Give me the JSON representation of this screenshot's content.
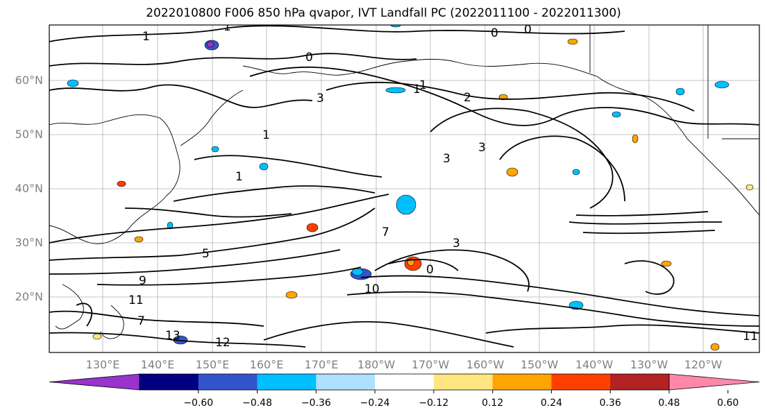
{
  "title": "2022010800 F006 850 hPa qvapor, IVT Landfall PC (2022011100 - 2022011300)",
  "lat_labels": [
    "60°N",
    "50°N",
    "40°N",
    "30°N",
    "20°N"
  ],
  "lon_labels": [
    "130°E",
    "140°E",
    "150°E",
    "160°E",
    "170°E",
    "180°W",
    "170°W",
    "160°W",
    "150°W",
    "140°W",
    "130°W",
    "120°W"
  ],
  "colorbar": {
    "colors": [
      "#9933cc",
      "#000080",
      "#3355cc",
      "#00bfff",
      "#aee0ff",
      "#ffffff",
      "#ffe680",
      "#ffa500",
      "#ff4000",
      "#b22222",
      "#ff88aa"
    ],
    "ticks": [
      "−0.60",
      "−0.48",
      "−0.36",
      "−0.24",
      "−0.12",
      "0.12",
      "0.24",
      "0.36",
      "0.48",
      "0.60"
    ]
  },
  "contour_labels": [
    "1",
    "1",
    "0",
    "0",
    "1",
    "0",
    "1",
    "3",
    "2",
    "1",
    "3",
    "3",
    "1",
    "5",
    "7",
    "3",
    "0",
    "10",
    "11",
    "13",
    "12",
    "9",
    "11",
    "7"
  ]
}
